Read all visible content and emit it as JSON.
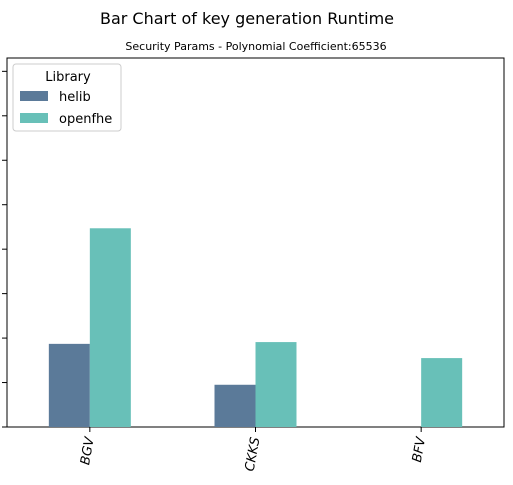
{
  "chart_data": {
    "type": "bar",
    "title": "Bar Chart of key generation  Runtime",
    "subtitle": "Security Params - Polynomial Coefficient:65536",
    "xlabel": "",
    "ylabel": "",
    "categories": [
      "BGV",
      "CKKS",
      "BFV"
    ],
    "series": [
      {
        "name": "helib",
        "color": "#5b7a99",
        "values": [
          1.87,
          0.95,
          null
        ]
      },
      {
        "name": "openfhe",
        "color": "#68c0b8",
        "values": [
          4.47,
          1.91,
          1.55
        ]
      }
    ],
    "ylim": [
      0,
      8.3
    ],
    "yticks": [
      0,
      1,
      2,
      3,
      4,
      5,
      6,
      7,
      8
    ],
    "grid": false,
    "legend": {
      "title": "Library",
      "placement": "top-left"
    }
  }
}
